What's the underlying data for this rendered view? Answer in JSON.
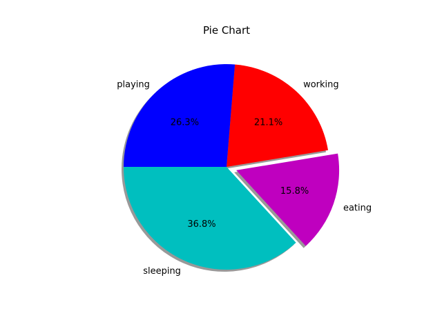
{
  "chart_data": {
    "type": "pie",
    "title": "Pie Chart",
    "start_angle_deg": 180,
    "shadow": true,
    "slices": [
      {
        "label": "sleeping",
        "value": 36.8,
        "pct_label": "36.8%",
        "color": "#00bfbf",
        "explode": 0
      },
      {
        "label": "eating",
        "value": 15.8,
        "pct_label": "15.8%",
        "color": "#bf00bf",
        "explode": 0.1
      },
      {
        "label": "working",
        "value": 21.1,
        "pct_label": "21.1%",
        "color": "#ff0000",
        "explode": 0
      },
      {
        "label": "playing",
        "value": 26.3,
        "pct_label": "26.3%",
        "color": "#0000ff",
        "explode": 0
      }
    ]
  }
}
